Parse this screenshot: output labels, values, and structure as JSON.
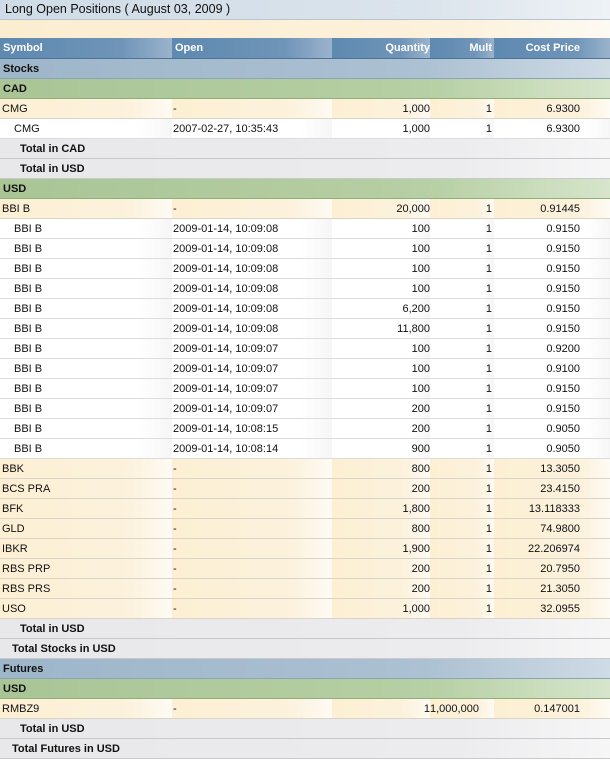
{
  "title": "Long Open Positions ( August 03, 2009 )",
  "columns": {
    "symbol": "Symbol",
    "open": "Open",
    "quantity": "Quantity",
    "mult": "Mult",
    "cost_price": "Cost Price"
  },
  "rows": [
    {
      "type": "sec",
      "label": "Stocks"
    },
    {
      "type": "cur",
      "label": "CAD"
    },
    {
      "type": "pos",
      "symbol": "CMG",
      "open": "-",
      "quantity": "1,000",
      "mult": "1",
      "cost": "6.9300"
    },
    {
      "type": "lot",
      "symbol": "CMG",
      "open": "2007-02-27, 10:35:43",
      "quantity": "1,000",
      "mult": "1",
      "cost": "6.9300"
    },
    {
      "type": "tot",
      "indent": 1,
      "label": "Total in CAD"
    },
    {
      "type": "tot",
      "indent": 1,
      "label": "Total in USD"
    },
    {
      "type": "cur",
      "label": "USD"
    },
    {
      "type": "pos",
      "symbol": "BBI B",
      "open": "-",
      "quantity": "20,000",
      "mult": "1",
      "cost": "0.91445"
    },
    {
      "type": "lot",
      "symbol": "BBI B",
      "open": "2009-01-14, 10:09:08",
      "quantity": "100",
      "mult": "1",
      "cost": "0.9150"
    },
    {
      "type": "lot",
      "symbol": "BBI B",
      "open": "2009-01-14, 10:09:08",
      "quantity": "100",
      "mult": "1",
      "cost": "0.9150"
    },
    {
      "type": "lot",
      "symbol": "BBI B",
      "open": "2009-01-14, 10:09:08",
      "quantity": "100",
      "mult": "1",
      "cost": "0.9150"
    },
    {
      "type": "lot",
      "symbol": "BBI B",
      "open": "2009-01-14, 10:09:08",
      "quantity": "100",
      "mult": "1",
      "cost": "0.9150"
    },
    {
      "type": "lot",
      "symbol": "BBI B",
      "open": "2009-01-14, 10:09:08",
      "quantity": "6,200",
      "mult": "1",
      "cost": "0.9150"
    },
    {
      "type": "lot",
      "symbol": "BBI B",
      "open": "2009-01-14, 10:09:08",
      "quantity": "11,800",
      "mult": "1",
      "cost": "0.9150"
    },
    {
      "type": "lot",
      "symbol": "BBI B",
      "open": "2009-01-14, 10:09:07",
      "quantity": "100",
      "mult": "1",
      "cost": "0.9200"
    },
    {
      "type": "lot",
      "symbol": "BBI B",
      "open": "2009-01-14, 10:09:07",
      "quantity": "100",
      "mult": "1",
      "cost": "0.9100"
    },
    {
      "type": "lot",
      "symbol": "BBI B",
      "open": "2009-01-14, 10:09:07",
      "quantity": "100",
      "mult": "1",
      "cost": "0.9150"
    },
    {
      "type": "lot",
      "symbol": "BBI B",
      "open": "2009-01-14, 10:09:07",
      "quantity": "200",
      "mult": "1",
      "cost": "0.9150"
    },
    {
      "type": "lot",
      "symbol": "BBI B",
      "open": "2009-01-14, 10:08:15",
      "quantity": "200",
      "mult": "1",
      "cost": "0.9050"
    },
    {
      "type": "lot",
      "symbol": "BBI B",
      "open": "2009-01-14, 10:08:14",
      "quantity": "900",
      "mult": "1",
      "cost": "0.9050"
    },
    {
      "type": "pos",
      "symbol": "BBK",
      "open": "-",
      "quantity": "800",
      "mult": "1",
      "cost": "13.3050"
    },
    {
      "type": "pos",
      "symbol": "BCS PRA",
      "open": "-",
      "quantity": "200",
      "mult": "1",
      "cost": "23.4150"
    },
    {
      "type": "pos",
      "symbol": "BFK",
      "open": "-",
      "quantity": "1,800",
      "mult": "1",
      "cost": "13.118333"
    },
    {
      "type": "pos",
      "symbol": "GLD",
      "open": "-",
      "quantity": "800",
      "mult": "1",
      "cost": "74.9800"
    },
    {
      "type": "pos",
      "symbol": "IBKR",
      "open": "-",
      "quantity": "1,900",
      "mult": "1",
      "cost": "22.206974"
    },
    {
      "type": "pos",
      "symbol": "RBS PRP",
      "open": "-",
      "quantity": "200",
      "mult": "1",
      "cost": "20.7950"
    },
    {
      "type": "pos",
      "symbol": "RBS PRS",
      "open": "-",
      "quantity": "200",
      "mult": "1",
      "cost": "21.3050"
    },
    {
      "type": "pos",
      "symbol": "USO",
      "open": "-",
      "quantity": "1,000",
      "mult": "1",
      "cost": "32.0955"
    },
    {
      "type": "tot",
      "indent": 1,
      "label": "Total in USD"
    },
    {
      "type": "tot",
      "indent": 2,
      "label": "Total Stocks in USD"
    },
    {
      "type": "sec",
      "label": "Futures"
    },
    {
      "type": "cur",
      "label": "USD"
    },
    {
      "type": "pos",
      "symbol": "RMBZ9",
      "open": "-",
      "quantity": "1",
      "mult": "1,000,000",
      "cost": "0.147001",
      "wide_mult": true
    },
    {
      "type": "tot",
      "indent": 1,
      "label": "Total in USD"
    },
    {
      "type": "tot",
      "indent": 2,
      "label": "Total Futures in USD"
    }
  ]
}
